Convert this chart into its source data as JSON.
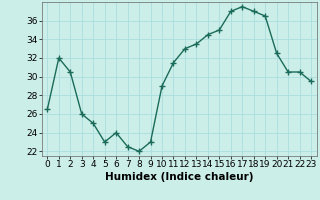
{
  "x": [
    0,
    1,
    2,
    3,
    4,
    5,
    6,
    7,
    8,
    9,
    10,
    11,
    12,
    13,
    14,
    15,
    16,
    17,
    18,
    19,
    20,
    21,
    22,
    23
  ],
  "y": [
    26.5,
    32.0,
    30.5,
    26.0,
    25.0,
    23.0,
    24.0,
    22.5,
    22.0,
    23.0,
    29.0,
    31.5,
    33.0,
    33.5,
    34.5,
    35.0,
    37.0,
    37.5,
    37.0,
    36.5,
    32.5,
    30.5,
    30.5,
    29.5
  ],
  "xlabel": "Humidex (Indice chaleur)",
  "ylim": [
    21.5,
    38.0
  ],
  "yticks": [
    22,
    24,
    26,
    28,
    30,
    32,
    34,
    36
  ],
  "line_color": "#1a6b5a",
  "marker": "+",
  "marker_size": 4,
  "bg_color": "#cceee8",
  "grid_color": "#aadddd",
  "xlabel_fontsize": 7.5,
  "tick_fontsize": 6.5,
  "line_width": 1.0
}
